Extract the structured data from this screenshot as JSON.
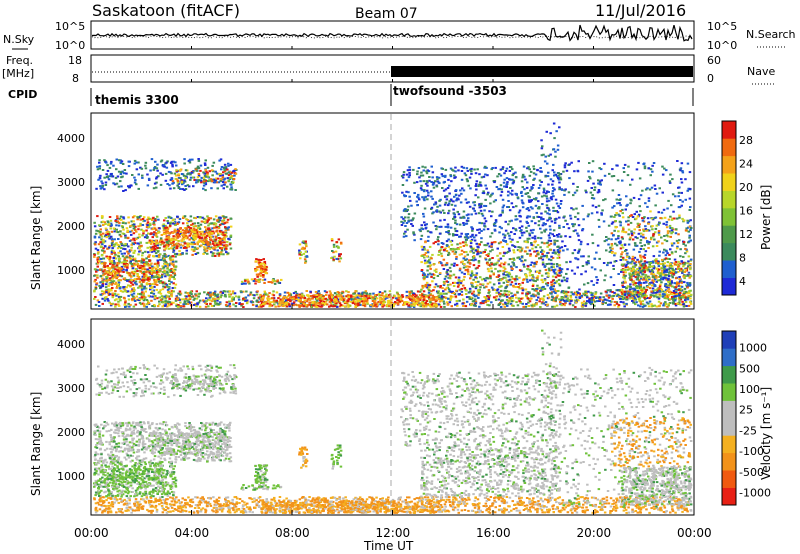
{
  "header": {
    "station": "Saskatoon (fitACF)",
    "beam": "Beam 07",
    "date": "11/Jul/2016"
  },
  "panels": {
    "nsky_label": "N.Sky",
    "freq_label": "Freq.",
    "freq_unit": "[MHz]",
    "cpid_label": "CPID",
    "nsearch_label": "N.Search",
    "nave_label": "Nave",
    "cpid_left": "themis 3300",
    "cpid_right": "twofsound -3503",
    "noise_ticks_left": [
      "10^5",
      "10^0"
    ],
    "noise_ticks_right": [
      "10^5",
      "10^0"
    ],
    "freq_ticks": [
      "18",
      "8"
    ],
    "nave_ticks": [
      "60",
      "0"
    ]
  },
  "colors": {
    "power_scale": [
      "#1e2ad6",
      "#1f5fcf",
      "#3b8a5c",
      "#4f9a4a",
      "#7fc236",
      "#b8d62a",
      "#f0d21a",
      "#f4a21a",
      "#f06a10",
      "#e01a10"
    ],
    "velocity_scale": [
      "#e82015",
      "#f05a10",
      "#f2921a",
      "#f4b020",
      "#bebebe",
      "#bebebe",
      "#6fc23a",
      "#3f9a4a",
      "#2f6ec8",
      "#1f3fb8"
    ]
  },
  "chart_data": [
    {
      "type": "heatmap",
      "name": "Power",
      "ylabel": "Slant Range [km]",
      "colorbar_label": "Power [dB]",
      "colorbar_ticks": [
        "28",
        "24",
        "20",
        "16",
        "12",
        "8",
        "4"
      ],
      "yticks": [
        "4000",
        "3000",
        "2000",
        "1000"
      ],
      "ylim": [
        180,
        4600
      ]
    },
    {
      "type": "heatmap",
      "name": "Velocity",
      "ylabel": "Slant Range [km]",
      "colorbar_label": "Velocity [m s⁻¹]",
      "colorbar_ticks": [
        "1000",
        "500",
        "100",
        "25",
        "-25",
        "-100",
        "-500",
        "-1000"
      ],
      "yticks": [
        "4000",
        "3000",
        "2000",
        "1000"
      ],
      "ylim": [
        180,
        4600
      ]
    }
  ],
  "xaxis": {
    "label": "Time UT",
    "ticks": [
      "00:00",
      "04:00",
      "08:00",
      "12:00",
      "16:00",
      "20:00",
      "00:00"
    ]
  }
}
